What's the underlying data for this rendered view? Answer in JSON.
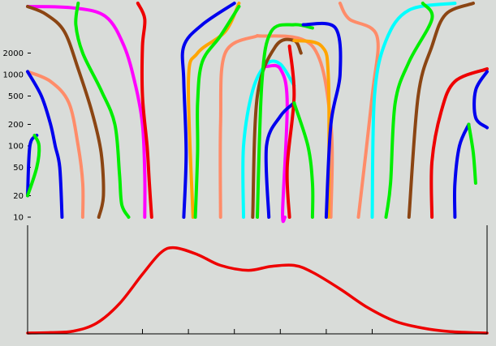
{
  "chart_data": [
    {
      "type": "line",
      "panel": "top",
      "yscale": "log",
      "ylim": [
        10,
        10000
      ],
      "xlim": [
        0,
        1
      ],
      "yticks": [
        10,
        20,
        50,
        100,
        200,
        500,
        1000,
        2000
      ],
      "ytick_labels": [
        "10",
        "20",
        "50",
        "100",
        "200",
        "500",
        "1000",
        "2000"
      ],
      "xlabel": "",
      "ylabel": "",
      "title": "",
      "grid": false,
      "series": [
        {
          "color": "#ff00ff",
          "points": [
            [
              0.0,
              9000
            ],
            [
              0.1,
              8600
            ],
            [
              0.17,
              6500
            ],
            [
              0.21,
              2500
            ],
            [
              0.235,
              700
            ],
            [
              0.25,
              200
            ],
            [
              0.255,
              40
            ],
            [
              0.255,
              10
            ]
          ]
        },
        {
          "color": "#8b4513",
          "points": [
            [
              0.0,
              9000
            ],
            [
              0.04,
              7000
            ],
            [
              0.08,
              4000
            ],
            [
              0.11,
              1200
            ],
            [
              0.14,
              300
            ],
            [
              0.16,
              80
            ],
            [
              0.165,
              20
            ],
            [
              0.155,
              10
            ]
          ]
        },
        {
          "color": "#00ee00",
          "points": [
            [
              0.11,
              10000
            ],
            [
              0.105,
              5000
            ],
            [
              0.12,
              2000
            ],
            [
              0.16,
              600
            ],
            [
              0.19,
              200
            ],
            [
              0.2,
              40
            ],
            [
              0.205,
              15
            ],
            [
              0.22,
              10
            ]
          ]
        },
        {
          "color": "#ee0000",
          "points": [
            [
              0.24,
              10000
            ],
            [
              0.255,
              6000
            ],
            [
              0.25,
              2500
            ],
            [
              0.25,
              500
            ],
            [
              0.26,
              100
            ],
            [
              0.265,
              30
            ],
            [
              0.27,
              10
            ]
          ]
        },
        {
          "color": "#ff8c69",
          "points": [
            [
              0.0,
              1100
            ],
            [
              0.05,
              800
            ],
            [
              0.09,
              400
            ],
            [
              0.11,
              100
            ],
            [
              0.12,
              30
            ],
            [
              0.12,
              10
            ]
          ]
        },
        {
          "color": "#0000ee",
          "points": [
            [
              0.0,
              1100
            ],
            [
              0.03,
              500
            ],
            [
              0.05,
              200
            ],
            [
              0.06,
              100
            ],
            [
              0.07,
              50
            ],
            [
              0.075,
              10
            ]
          ]
        },
        {
          "color": "#0000ee",
          "points": [
            [
              0.0,
              20
            ],
            [
              0.005,
              100
            ],
            [
              0.02,
              140
            ]
          ]
        },
        {
          "color": "#00ee00",
          "points": [
            [
              0.0,
              20
            ],
            [
              0.02,
              50
            ],
            [
              0.025,
              100
            ],
            [
              0.015,
              140
            ]
          ]
        },
        {
          "color": "#0000ee",
          "points": [
            [
              0.45,
              10000
            ],
            [
              0.38,
              5000
            ],
            [
              0.34,
              2500
            ],
            [
              0.34,
              800
            ],
            [
              0.345,
              80
            ],
            [
              0.34,
              10
            ]
          ]
        },
        {
          "color": "#ffa500",
          "points": [
            [
              0.46,
              10000
            ],
            [
              0.43,
              4000
            ],
            [
              0.37,
              2000
            ],
            [
              0.35,
              800
            ],
            [
              0.36,
              10
            ]
          ]
        },
        {
          "color": "#00ee00",
          "points": [
            [
              0.46,
              9000
            ],
            [
              0.42,
              3500
            ],
            [
              0.38,
              1500
            ],
            [
              0.37,
              400
            ],
            [
              0.37,
              80
            ],
            [
              0.365,
              10
            ]
          ]
        },
        {
          "color": "#ff8c69",
          "points": [
            [
              0.5,
              3500
            ],
            [
              0.43,
              2000
            ],
            [
              0.42,
              200
            ],
            [
              0.42,
              10
            ]
          ]
        },
        {
          "color": "#ff8c69",
          "points": [
            [
              0.5,
              3500
            ],
            [
              0.62,
              2500
            ],
            [
              0.66,
              200
            ],
            [
              0.66,
              10
            ]
          ]
        },
        {
          "color": "#00ffff",
          "points": [
            [
              0.47,
              10
            ],
            [
              0.47,
              100
            ],
            [
              0.49,
              600
            ],
            [
              0.52,
              1400
            ],
            [
              0.55,
              1400
            ],
            [
              0.58,
              700
            ]
          ]
        },
        {
          "color": "#ff00ff",
          "points": [
            [
              0.52,
              1300
            ],
            [
              0.55,
              1200
            ],
            [
              0.565,
              400
            ],
            [
              0.555,
              12
            ],
            [
              0.56,
              10
            ]
          ]
        },
        {
          "color": "#0000ee",
          "points": [
            [
              0.525,
              10
            ],
            [
              0.52,
              100
            ],
            [
              0.55,
              260
            ],
            [
              0.58,
              400
            ]
          ]
        },
        {
          "color": "#ee0000",
          "points": [
            [
              0.57,
              2500
            ],
            [
              0.58,
              500
            ],
            [
              0.565,
              50
            ],
            [
              0.57,
              10
            ]
          ]
        },
        {
          "color": "#8b4513",
          "points": [
            [
              0.49,
              10
            ],
            [
              0.5,
              500
            ],
            [
              0.54,
              2500
            ],
            [
              0.58,
              3000
            ],
            [
              0.595,
              2000
            ]
          ]
        },
        {
          "color": "#ffa500",
          "points": [
            [
              0.58,
              3000
            ],
            [
              0.64,
              2500
            ],
            [
              0.655,
              800
            ],
            [
              0.655,
              10
            ]
          ]
        },
        {
          "color": "#00ee00",
          "points": [
            [
              0.5,
              10
            ],
            [
              0.51,
              800
            ],
            [
              0.53,
              4000
            ],
            [
              0.58,
              5000
            ],
            [
              0.62,
              4500
            ]
          ]
        },
        {
          "color": "#0000ee",
          "points": [
            [
              0.6,
              5000
            ],
            [
              0.67,
              4500
            ],
            [
              0.68,
              1000
            ],
            [
              0.66,
              200
            ],
            [
              0.65,
              10
            ]
          ]
        },
        {
          "color": "#00ee00",
          "points": [
            [
              0.58,
              400
            ],
            [
              0.61,
              100
            ],
            [
              0.62,
              30
            ],
            [
              0.62,
              10
            ]
          ]
        },
        {
          "color": "#ff8c69",
          "points": [
            [
              0.68,
              10000
            ],
            [
              0.7,
              6000
            ],
            [
              0.76,
              3500
            ],
            [
              0.75,
              500
            ],
            [
              0.72,
              10
            ]
          ]
        },
        {
          "color": "#00ffff",
          "points": [
            [
              0.93,
              10000
            ],
            [
              0.83,
              8000
            ],
            [
              0.78,
              3000
            ],
            [
              0.755,
              500
            ],
            [
              0.75,
              10
            ]
          ]
        },
        {
          "color": "#00ee00",
          "points": [
            [
              0.86,
              10000
            ],
            [
              0.88,
              6000
            ],
            [
              0.83,
              1500
            ],
            [
              0.8,
              400
            ],
            [
              0.79,
              30
            ],
            [
              0.78,
              10
            ]
          ]
        },
        {
          "color": "#8b4513",
          "points": [
            [
              0.97,
              10000
            ],
            [
              0.91,
              7000
            ],
            [
              0.88,
              2500
            ],
            [
              0.85,
              500
            ],
            [
              0.83,
              10
            ]
          ]
        },
        {
          "color": "#ee0000",
          "points": [
            [
              1.0,
              1200
            ],
            [
              0.93,
              800
            ],
            [
              0.9,
              300
            ],
            [
              0.88,
              60
            ],
            [
              0.88,
              10
            ]
          ]
        },
        {
          "color": "#0000ee",
          "points": [
            [
              1.0,
              1100
            ],
            [
              0.975,
              600
            ],
            [
              0.975,
              250
            ],
            [
              1.0,
              180
            ]
          ]
        },
        {
          "color": "#0000ee",
          "points": [
            [
              0.96,
              200
            ],
            [
              0.94,
              100
            ],
            [
              0.93,
              30
            ],
            [
              0.93,
              10
            ]
          ]
        },
        {
          "color": "#00ee00",
          "points": [
            [
              0.96,
              200
            ],
            [
              0.97,
              80
            ],
            [
              0.975,
              30
            ]
          ]
        }
      ]
    },
    {
      "type": "line",
      "panel": "bottom",
      "xlim": [
        0,
        1
      ],
      "ylim": [
        0,
        1
      ],
      "xticks": [
        0.25,
        0.35,
        0.45,
        0.55,
        0.65,
        0.75
      ],
      "grid": false,
      "series": [
        {
          "color": "#ee0000",
          "points": [
            [
              0.0,
              0.0
            ],
            [
              0.05,
              0.005
            ],
            [
              0.1,
              0.02
            ],
            [
              0.15,
              0.1
            ],
            [
              0.2,
              0.3
            ],
            [
              0.25,
              0.6
            ],
            [
              0.29,
              0.82
            ],
            [
              0.32,
              0.87
            ],
            [
              0.37,
              0.8
            ],
            [
              0.42,
              0.69
            ],
            [
              0.48,
              0.64
            ],
            [
              0.53,
              0.68
            ],
            [
              0.58,
              0.69
            ],
            [
              0.62,
              0.62
            ],
            [
              0.68,
              0.45
            ],
            [
              0.74,
              0.26
            ],
            [
              0.8,
              0.12
            ],
            [
              0.86,
              0.05
            ],
            [
              0.92,
              0.015
            ],
            [
              1.0,
              0.0
            ]
          ]
        }
      ]
    }
  ]
}
